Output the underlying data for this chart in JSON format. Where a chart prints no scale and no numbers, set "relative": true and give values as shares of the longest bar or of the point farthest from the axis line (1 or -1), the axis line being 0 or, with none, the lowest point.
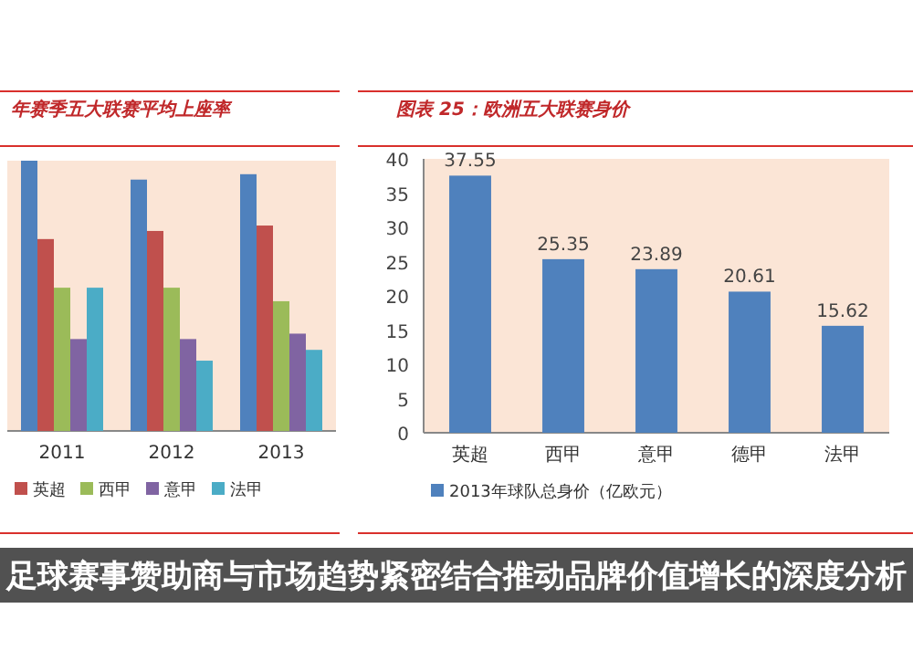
{
  "chart_data": [
    {
      "type": "bar",
      "title": "年赛季五大联赛平均上座率",
      "categories": [
        "2011",
        "2012",
        "2013"
      ],
      "relative": true,
      "legend": "bottom",
      "tick_labels": "x",
      "annotations": [
        "足球赛事赞助商与市场趋势紧密结合推动品牌价值增长的深度分析"
      ],
      "series": [
        {
          "color": "#4f81bd",
          "values": [
            1,
            0.93,
            0.95
          ]
        },
        {
          "name": "英超",
          "color": "#c0504d",
          "values": [
            0.71,
            0.74,
            0.76
          ]
        },
        {
          "name": "西甲",
          "color": "#9bbb59",
          "values": [
            0.53,
            0.53,
            0.48
          ]
        },
        {
          "name": "意甲",
          "color": "#8064a2",
          "values": [
            0.34,
            0.34,
            0.36
          ]
        },
        {
          "name": "法甲",
          "color": "#4bacc6",
          "values": [
            0.53,
            0.26,
            0.3
          ]
        }
      ]
    },
    {
      "type": "bar",
      "title": "图表 25：欧洲五大联赛身价",
      "categories": [
        "英超",
        "西甲",
        "意甲",
        "德甲",
        "法甲"
      ],
      "ylim": [
        0,
        40
      ],
      "yticks": [
        0,
        5,
        10,
        15,
        20,
        25,
        30,
        35,
        40
      ],
      "legend": "bottom",
      "data_labels": true,
      "series": [
        {
          "name": "2013年球队总身价（亿欧元）",
          "color": "#4f81bd",
          "values": [
            37.55,
            25.35,
            23.89,
            20.61,
            15.62
          ]
        }
      ]
    }
  ]
}
